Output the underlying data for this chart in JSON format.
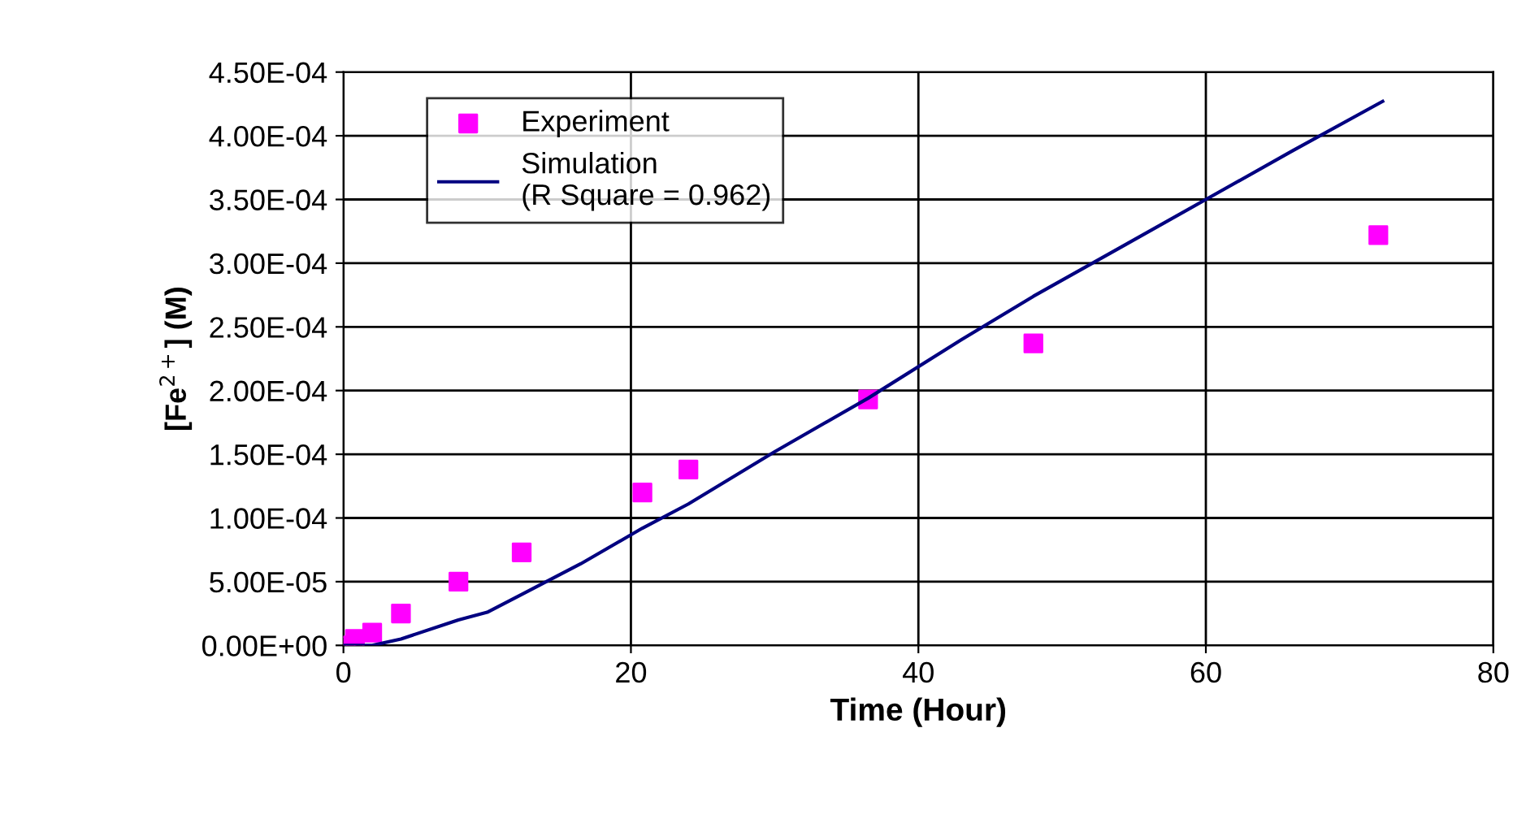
{
  "chart_data": {
    "type": "scatter",
    "xlabel": "Time (Hour)",
    "ylabel": "[Fe$^{2+}$] (M)",
    "xlim": [
      0,
      80
    ],
    "xticks": [
      0,
      20,
      40,
      60,
      80
    ],
    "ylim": [
      0,
      0.00045
    ],
    "yticks": [
      {
        "value": 0,
        "label": "0.00E+00"
      },
      {
        "value": 5e-05,
        "label": "5.00E-05"
      },
      {
        "value": 0.0001,
        "label": "1.00E-04"
      },
      {
        "value": 0.00015,
        "label": "1.50E-04"
      },
      {
        "value": 0.0002,
        "label": "2.00E-04"
      },
      {
        "value": 0.00025,
        "label": "2.50E-04"
      },
      {
        "value": 0.0003,
        "label": "3.00E-04"
      },
      {
        "value": 0.00035,
        "label": "3.50E-04"
      },
      {
        "value": 0.0004,
        "label": "4.00E-04"
      },
      {
        "value": 0.00045,
        "label": "4.50E-04"
      }
    ],
    "grid": true,
    "legend": "top left",
    "series": [
      {
        "name": "Experiment",
        "marker": "square",
        "color": "#ff00ff",
        "x": [
          0.2,
          0.8,
          2,
          4,
          8,
          12.4,
          20.8,
          24,
          36.5,
          48,
          72
        ],
        "values": [
          0,
          5e-06,
          1e-05,
          2.5e-05,
          5e-05,
          7.3e-05,
          0.00012,
          0.000138,
          0.000193,
          0.000237,
          0.000322
        ]
      },
      {
        "name": "Simulation\n(R Square = 0.962)",
        "type": "line",
        "marker": "none",
        "line_style": "solid",
        "color": "#000080",
        "x": [
          0,
          2,
          4,
          8,
          10,
          12.4,
          16.5,
          20.8,
          24,
          30,
          36.5,
          43,
          48,
          54,
          60,
          66,
          72.3
        ],
        "values": [
          0,
          0,
          5e-06,
          2e-05,
          2.6e-05,
          4e-05,
          6.4e-05,
          9.2e-05,
          0.000111,
          0.000152,
          0.000194,
          0.00024,
          0.000274,
          0.000312,
          0.00035,
          0.000388,
          0.000427
        ]
      }
    ]
  }
}
